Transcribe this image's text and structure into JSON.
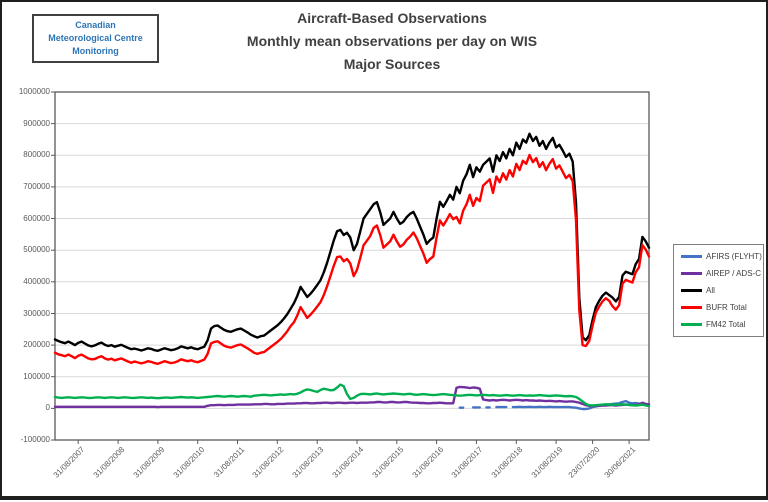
{
  "logo": {
    "lines": [
      "Canadian",
      "Meteorological Centre",
      "Monitoring"
    ]
  },
  "chart_data": {
    "type": "line",
    "title_lines": [
      "Aircraft-Based Observations",
      "Monthly mean observations per day on WIS",
      "Major Sources"
    ],
    "title": "Aircraft-Based Observations Monthly mean observations per day on WIS Major Sources",
    "grid": true,
    "legend_position": "right",
    "ylim": [
      -100000,
      1000000
    ],
    "y_tick_values": [
      1000000,
      900000,
      800000,
      700000,
      600000,
      500000,
      400000,
      300000,
      200000,
      100000,
      0,
      -100000
    ],
    "y_tick_labels": [
      "1000000",
      "900000",
      "800000",
      "700000",
      "600000",
      "500000",
      "400000",
      "300000",
      "200000",
      "100000",
      "0",
      "-100000"
    ],
    "x_tick_labels": [
      "31/08/2007",
      "31/08/2008",
      "31/08/2009",
      "31/08/2010",
      "31/08/2011",
      "31/08/2012",
      "31/08/2013",
      "31/08/2014",
      "31/08/2015",
      "31/08/2016",
      "31/08/2017",
      "31/08/2018",
      "31/08/2019",
      "23/07/2020",
      "30/06/2021"
    ],
    "x_tick_indices": [
      7,
      19,
      31,
      43,
      55,
      67,
      79,
      91,
      103,
      115,
      127,
      139,
      151,
      162,
      173
    ],
    "x_range_months": "2007-01 to 2021-12 (monthly)",
    "series": [
      {
        "id": "afirs",
        "name": "AFIRS (FLYHT)",
        "color": "#4472C4",
        "values": [
          null,
          null,
          null,
          null,
          null,
          null,
          null,
          null,
          null,
          null,
          null,
          null,
          null,
          null,
          null,
          null,
          null,
          null,
          null,
          null,
          null,
          null,
          null,
          null,
          null,
          null,
          null,
          null,
          null,
          null,
          null,
          null,
          null,
          null,
          null,
          null,
          null,
          null,
          null,
          null,
          null,
          null,
          null,
          null,
          null,
          null,
          null,
          null,
          null,
          null,
          null,
          null,
          null,
          null,
          null,
          null,
          null,
          null,
          null,
          null,
          null,
          null,
          null,
          null,
          null,
          null,
          null,
          null,
          null,
          null,
          null,
          null,
          null,
          null,
          null,
          null,
          null,
          null,
          null,
          null,
          null,
          null,
          null,
          null,
          null,
          null,
          null,
          null,
          null,
          null,
          null,
          null,
          null,
          null,
          null,
          null,
          null,
          null,
          null,
          null,
          null,
          null,
          null,
          null,
          null,
          null,
          null,
          null,
          null,
          null,
          null,
          null,
          null,
          null,
          null,
          null,
          null,
          null,
          null,
          null,
          null,
          null,
          2000,
          2000,
          null,
          null,
          3000,
          3000,
          3000,
          null,
          3000,
          3000,
          null,
          4000,
          4000,
          4000,
          4000,
          null,
          4000,
          4000,
          5000,
          4000,
          4000,
          5000,
          4000,
          4000,
          5000,
          4000,
          4000,
          5000,
          4000,
          4000,
          4000,
          4000,
          4000,
          4000,
          3000,
          2000,
          0,
          -2000,
          -2000,
          0,
          4000,
          6000,
          8000,
          10000,
          12000,
          13000,
          14000,
          15000,
          16000,
          20000,
          23000,
          18000,
          16000,
          17000,
          15000,
          13000,
          12000,
          13000
        ]
      },
      {
        "id": "airep",
        "name": "AIREP / ADS-C",
        "color": "#7030A0",
        "values": [
          5000,
          5000,
          5000,
          5000,
          5000,
          5000,
          5000,
          5000,
          5000,
          5000,
          5000,
          5000,
          5000,
          5000,
          5000,
          5000,
          5000,
          5000,
          5000,
          5000,
          5000,
          5000,
          5000,
          5000,
          5000,
          5000,
          5000,
          5000,
          5000,
          5000,
          5000,
          4000,
          5000,
          5000,
          5000,
          5000,
          5000,
          5000,
          5000,
          5000,
          5000,
          5000,
          5000,
          5000,
          5000,
          5000,
          8000,
          10000,
          10000,
          11000,
          11000,
          10000,
          11000,
          11000,
          11000,
          12000,
          12000,
          12000,
          12000,
          12000,
          13000,
          13000,
          13000,
          14000,
          14000,
          13000,
          13000,
          14000,
          14000,
          14000,
          15000,
          15000,
          15000,
          16000,
          16000,
          17000,
          17000,
          16000,
          16000,
          17000,
          17000,
          18000,
          18000,
          17000,
          17000,
          18000,
          18000,
          17000,
          17000,
          18000,
          18000,
          17000,
          18000,
          18000,
          18000,
          19000,
          19000,
          20000,
          20000,
          19000,
          19000,
          20000,
          20000,
          19000,
          19000,
          20000,
          20000,
          19000,
          18000,
          18000,
          17000,
          17000,
          16000,
          16000,
          17000,
          17000,
          18000,
          17000,
          16000,
          16000,
          16000,
          65000,
          68000,
          67000,
          66000,
          64000,
          66000,
          65000,
          62000,
          28000,
          26000,
          25000,
          26000,
          25000,
          26000,
          27000,
          26000,
          25000,
          26000,
          27000,
          26000,
          25000,
          26000,
          25000,
          25000,
          24000,
          25000,
          24000,
          23000,
          24000,
          23000,
          22000,
          23000,
          22000,
          21000,
          22000,
          22000,
          20000,
          18000,
          14000,
          10000,
          8000,
          7000,
          8000,
          8000,
          9000,
          9000,
          10000,
          10000,
          9000,
          10000,
          11000,
          12000,
          11000,
          10000,
          11000,
          13000,
          18000,
          14000,
          13000
        ]
      },
      {
        "id": "all",
        "name": "All",
        "color": "#000000",
        "values": [
          218000,
          213000,
          209000,
          206000,
          211000,
          206000,
          200000,
          207000,
          211000,
          205000,
          199000,
          196000,
          199000,
          204000,
          208000,
          201000,
          197000,
          200000,
          195000,
          198000,
          201000,
          196000,
          191000,
          187000,
          189000,
          186000,
          183000,
          186000,
          190000,
          188000,
          184000,
          182000,
          186000,
          190000,
          187000,
          184000,
          186000,
          190000,
          196000,
          193000,
          190000,
          193000,
          189000,
          187000,
          191000,
          195000,
          215000,
          252000,
          260000,
          262000,
          255000,
          248000,
          244000,
          242000,
          246000,
          250000,
          252000,
          246000,
          240000,
          233000,
          228000,
          224000,
          228000,
          230000,
          238000,
          246000,
          254000,
          262000,
          272000,
          284000,
          298000,
          315000,
          332000,
          355000,
          384000,
          368000,
          352000,
          362000,
          375000,
          390000,
          405000,
          430000,
          460000,
          495000,
          530000,
          560000,
          564000,
          548000,
          555000,
          540000,
          500000,
          520000,
          560000,
          600000,
          615000,
          630000,
          645000,
          652000,
          620000,
          580000,
          590000,
          600000,
          621000,
          600000,
          583000,
          590000,
          605000,
          615000,
          621000,
          600000,
          575000,
          550000,
          520000,
          532000,
          540000,
          600000,
          653000,
          637000,
          655000,
          675000,
          660000,
          700000,
          680000,
          720000,
          740000,
          770000,
          731000,
          762000,
          748000,
          770000,
          780000,
          790000,
          748000,
          800000,
          782000,
          810000,
          790000,
          820000,
          800000,
          840000,
          820000,
          850000,
          840000,
          868000,
          845000,
          858000,
          830000,
          845000,
          820000,
          840000,
          855000,
          825000,
          833000,
          815000,
          795000,
          805000,
          780000,
          650000,
          350000,
          225000,
          215000,
          232000,
          280000,
          320000,
          340000,
          356000,
          366000,
          358000,
          350000,
          338000,
          352000,
          420000,
          432000,
          428000,
          424000,
          456000,
          472000,
          542000,
          528000,
          508000
        ]
      },
      {
        "id": "bufr",
        "name": "BUFR Total",
        "color": "#FF0000",
        "values": [
          176000,
          171000,
          168000,
          165000,
          170000,
          165000,
          159000,
          166000,
          170000,
          164000,
          158000,
          155000,
          156000,
          161000,
          165000,
          158000,
          154000,
          157000,
          152000,
          155000,
          158000,
          153000,
          148000,
          144000,
          148000,
          145000,
          142000,
          145000,
          149000,
          147000,
          143000,
          141000,
          145000,
          149000,
          146000,
          143000,
          145000,
          149000,
          155000,
          152000,
          149000,
          152000,
          148000,
          146000,
          150000,
          154000,
          172000,
          205000,
          210000,
          212000,
          205000,
          198000,
          194000,
          192000,
          196000,
          200000,
          202000,
          196000,
          190000,
          183000,
          176000,
          172000,
          176000,
          178000,
          186000,
          194000,
          202000,
          210000,
          219000,
          231000,
          244000,
          260000,
          272000,
          293000,
          320000,
          303000,
          286000,
          296000,
          308000,
          322000,
          336000,
          358000,
          386000,
          418000,
          450000,
          478000,
          480000,
          465000,
          472000,
          458000,
          418000,
          438000,
          476000,
          516000,
          530000,
          545000,
          570000,
          578000,
          548000,
          508000,
          518000,
          528000,
          549000,
          528000,
          511000,
          518000,
          533000,
          543000,
          556000,
          538000,
          514000,
          490000,
          460000,
          472000,
          480000,
          540000,
          594000,
          578000,
          595000,
          614000,
          598000,
          605000,
          585000,
          625000,
          645000,
          675000,
          640000,
          665000,
          655000,
          704000,
          714000,
          724000,
          681000,
          733000,
          715000,
          743000,
          723000,
          753000,
          733000,
          773000,
          753000,
          783000,
          773000,
          801000,
          778000,
          791000,
          763000,
          778000,
          753000,
          773000,
          788000,
          758000,
          768000,
          748000,
          728000,
          738000,
          718000,
          595000,
          310000,
          200000,
          197000,
          214000,
          262000,
          303000,
          322000,
          338000,
          348000,
          340000,
          323000,
          312000,
          326000,
          394000,
          406000,
          402000,
          398000,
          430000,
          446000,
          516000,
          502000,
          480000
        ]
      },
      {
        "id": "fm42",
        "name": "FM42 Total",
        "color": "#00B050",
        "values": [
          36000,
          34000,
          33000,
          34000,
          35000,
          34000,
          33000,
          34000,
          35000,
          34000,
          33000,
          33000,
          34000,
          35000,
          34000,
          33000,
          34000,
          35000,
          34000,
          33000,
          34000,
          35000,
          34000,
          33000,
          33000,
          34000,
          35000,
          34000,
          33000,
          34000,
          33000,
          32000,
          33000,
          34000,
          34000,
          33000,
          34000,
          35000,
          36000,
          35000,
          34000,
          35000,
          34000,
          33000,
          34000,
          35000,
          36000,
          37000,
          38000,
          39000,
          38000,
          37000,
          38000,
          39000,
          38000,
          37000,
          38000,
          39000,
          38000,
          37000,
          40000,
          41000,
          42000,
          43000,
          42000,
          41000,
          42000,
          43000,
          44000,
          43000,
          44000,
          45000,
          44000,
          46000,
          50000,
          56000,
          60000,
          58000,
          55000,
          52000,
          58000,
          62000,
          60000,
          57000,
          58000,
          66000,
          75000,
          70000,
          45000,
          30000,
          33000,
          40000,
          45000,
          46000,
          45000,
          44000,
          46000,
          47000,
          45000,
          44000,
          45000,
          46000,
          47000,
          46000,
          45000,
          44000,
          45000,
          46000,
          44000,
          43000,
          44000,
          45000,
          44000,
          43000,
          42000,
          43000,
          44000,
          45000,
          44000,
          43000,
          42000,
          41000,
          40000,
          41000,
          42000,
          43000,
          42000,
          41000,
          42000,
          43000,
          42000,
          41000,
          42000,
          41000,
          40000,
          41000,
          42000,
          41000,
          40000,
          41000,
          42000,
          41000,
          40000,
          41000,
          40000,
          41000,
          42000,
          41000,
          40000,
          39000,
          40000,
          41000,
          40000,
          39000,
          38000,
          39000,
          38000,
          36000,
          30000,
          22000,
          14000,
          10000,
          9000,
          10000,
          11000,
          12000,
          13000,
          12000,
          12000,
          11000,
          12000,
          13000,
          12000,
          11000,
          10000,
          9000,
          10000,
          12000,
          9000,
          7000
        ]
      }
    ]
  }
}
